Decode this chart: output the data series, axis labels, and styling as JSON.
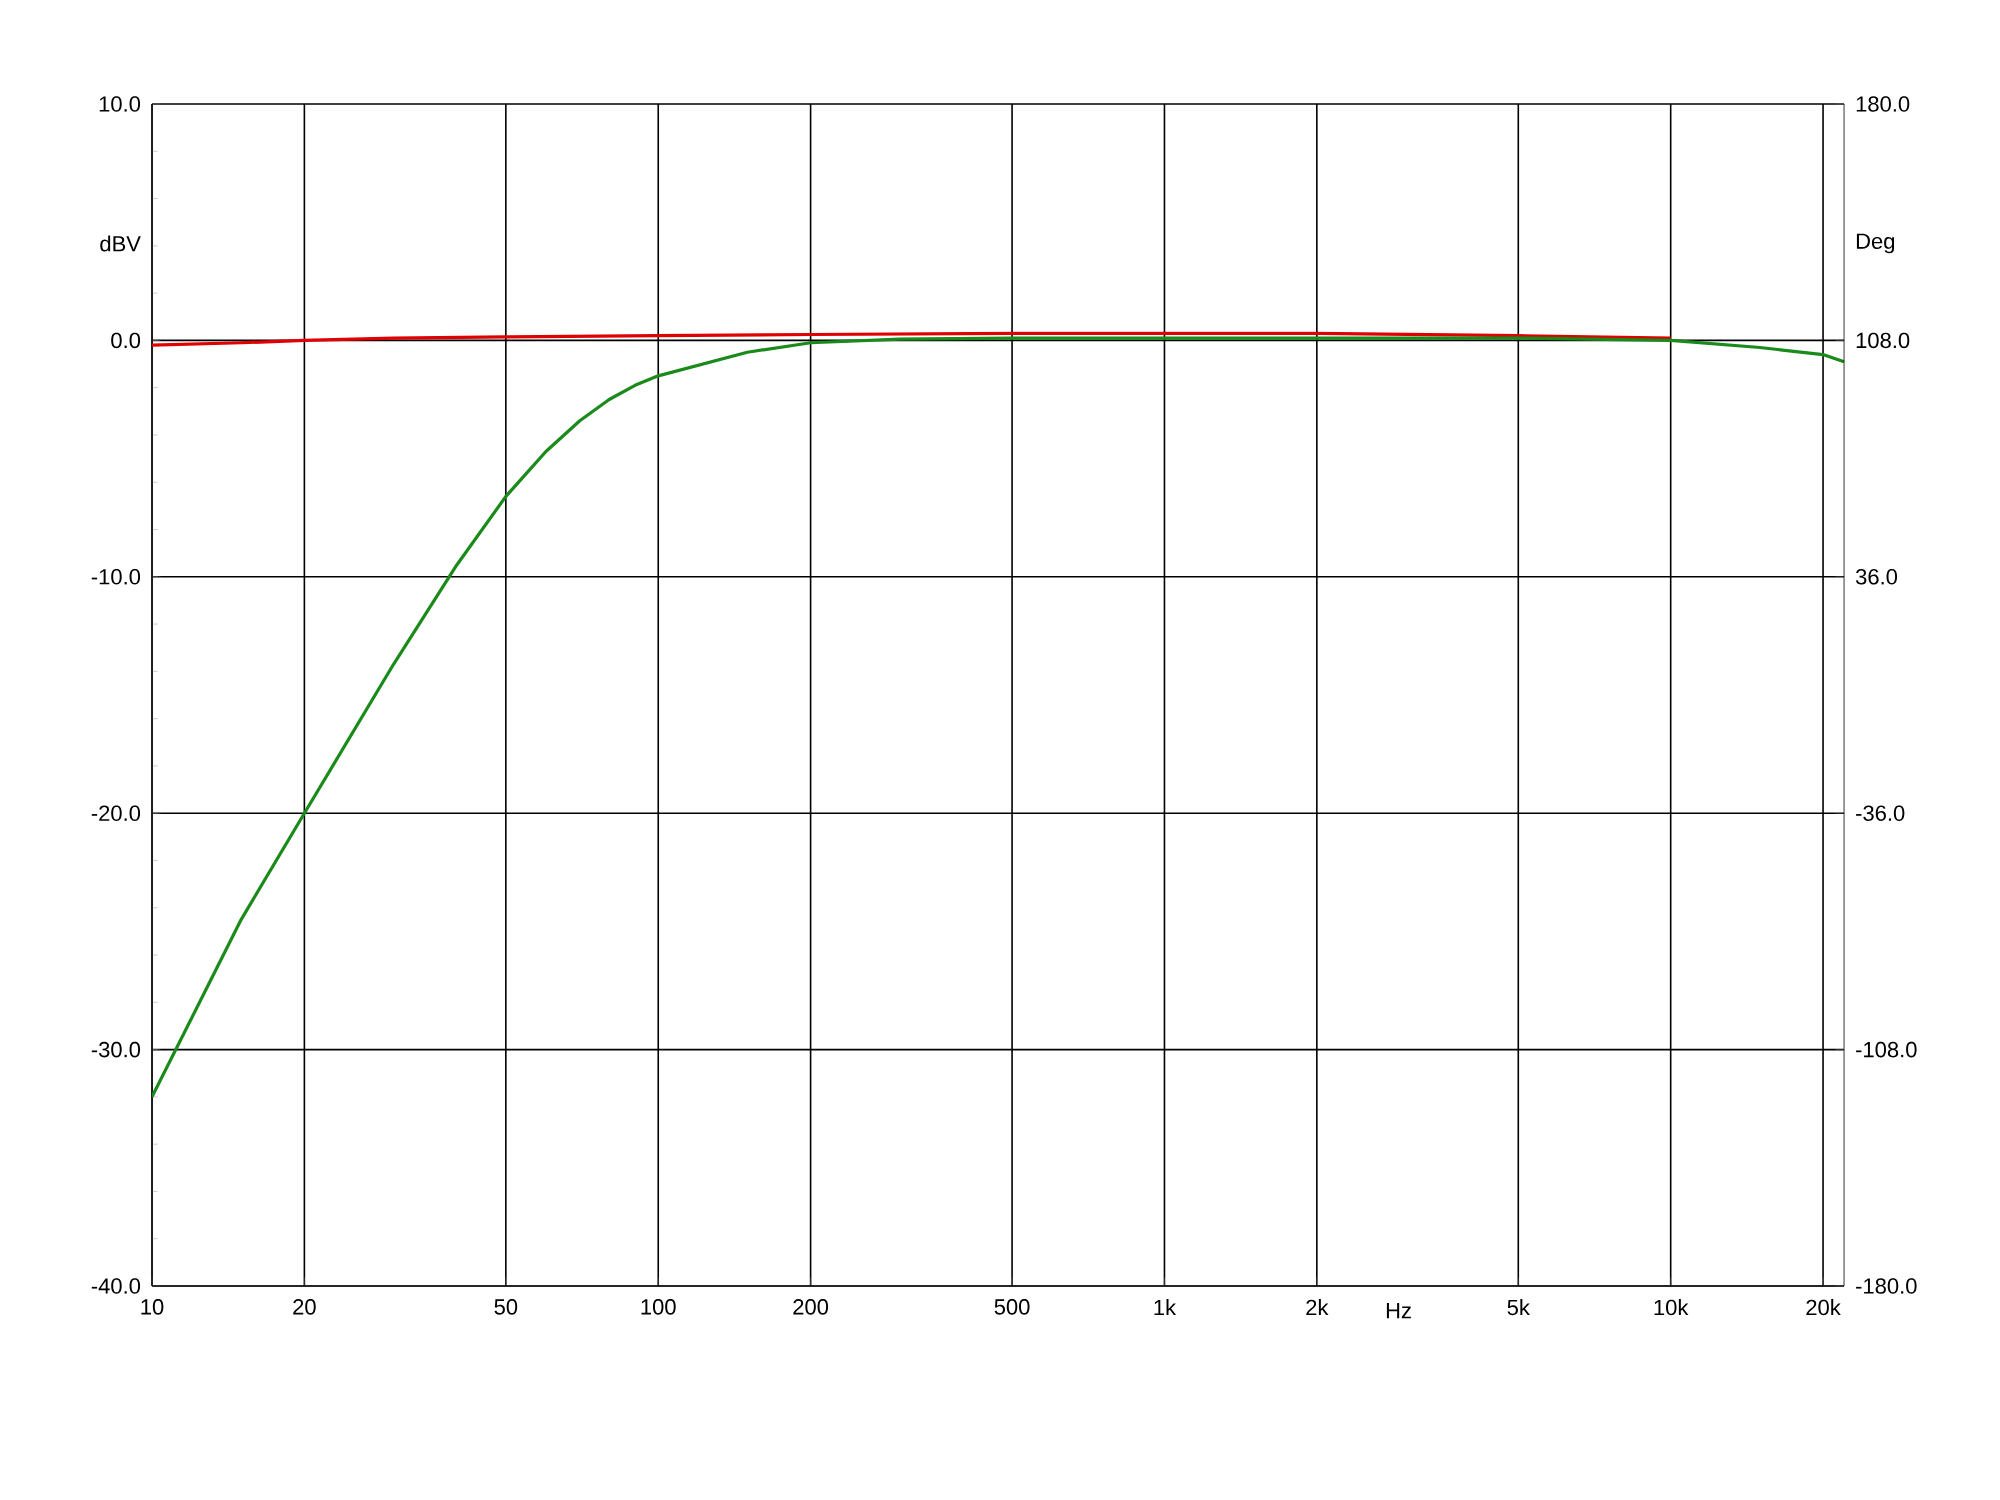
{
  "chart_data": {
    "type": "line",
    "log": "x",
    "grid": true,
    "marker": "none",
    "line_style": "solid",
    "xlabel": "Hz",
    "ylabel": "dBV",
    "y2label": "Deg",
    "xlim": [
      10,
      22000
    ],
    "xticks": [
      10,
      20,
      50,
      100,
      200,
      500,
      {
        "value": 1000,
        "label": "1k"
      },
      {
        "value": 2000,
        "label": "2k"
      },
      {
        "value": 5000,
        "label": "5k"
      },
      {
        "value": 10000,
        "label": "10k"
      },
      {
        "value": 20000,
        "label": "20k"
      }
    ],
    "ylim": [
      -40,
      10
    ],
    "yticks": [
      {
        "value": -40,
        "label": "-40.0"
      },
      {
        "value": -30,
        "label": "-30.0"
      },
      {
        "value": -20,
        "label": "-20.0"
      },
      {
        "value": -10,
        "label": "-10.0"
      },
      {
        "value": 0,
        "label": "0.0"
      },
      {
        "value": 10,
        "label": "10.0"
      }
    ],
    "y2lim": [
      -180,
      180
    ],
    "y2ticks": [
      {
        "value": -180,
        "label": "-180.0"
      },
      {
        "value": -108,
        "label": "-108.0"
      },
      {
        "value": -36,
        "label": "-36.0"
      },
      {
        "value": 36,
        "label": "36.0"
      },
      {
        "value": 108,
        "label": "108.0"
      },
      {
        "value": 180,
        "label": "180.0"
      }
    ],
    "series": [
      {
        "color": "#e00000",
        "x": [
          10,
          15,
          20,
          30,
          50,
          100,
          200,
          500,
          1000,
          2000,
          5000,
          10000
        ],
        "values": [
          -0.2,
          -0.1,
          0,
          0.1,
          0.15,
          0.2,
          0.25,
          0.3,
          0.3,
          0.3,
          0.2,
          0.1
        ]
      },
      {
        "color": "#1a8a1a",
        "x": [
          10,
          15,
          20,
          30,
          40,
          50,
          60,
          70,
          80,
          90,
          100,
          150,
          200,
          300,
          500,
          1000,
          2000,
          5000,
          10000,
          15000,
          20000,
          22000
        ],
        "values": [
          -32,
          -24.5,
          -20,
          -13.7,
          -9.5,
          -6.6,
          -4.7,
          -3.4,
          -2.5,
          -1.9,
          -1.5,
          -0.5,
          -0.1,
          0.05,
          0.1,
          0.1,
          0.1,
          0.1,
          0,
          -0.3,
          -0.6,
          -0.9
        ]
      }
    ]
  }
}
